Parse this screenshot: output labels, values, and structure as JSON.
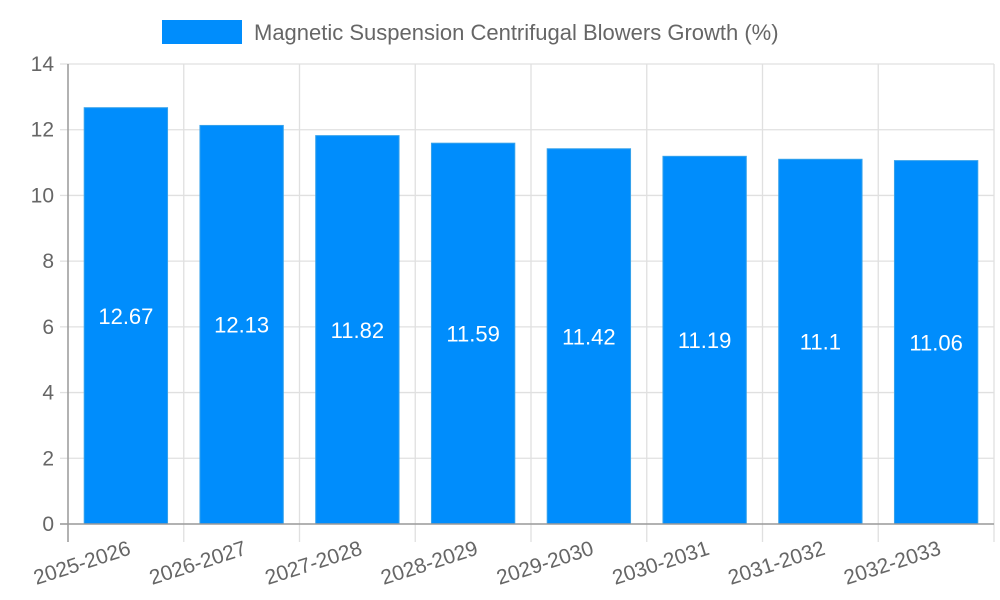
{
  "legend": {
    "label": "Magnetic Suspension Centrifugal Blowers Growth (%)",
    "color": "#008dfc"
  },
  "colors": {
    "bar": "#008dfc",
    "bar_border": "#36a2eb",
    "axis": "#999999",
    "grid": "#e0e0e0",
    "text": "#666666",
    "label": "#ffffff"
  },
  "chart_data": {
    "type": "bar",
    "title": "",
    "xlabel": "",
    "ylabel": "",
    "categories": [
      "2025-2026",
      "2026-2027",
      "2027-2028",
      "2028-2029",
      "2029-2030",
      "2030-2031",
      "2031-2032",
      "2032-2033"
    ],
    "series": [
      {
        "name": "Magnetic Suspension Centrifugal Blowers Growth (%)",
        "values": [
          12.67,
          12.13,
          11.82,
          11.59,
          11.42,
          11.19,
          11.1,
          11.06
        ]
      }
    ],
    "data_labels": [
      "12.67",
      "12.13",
      "11.82",
      "11.59",
      "11.42",
      "11.19",
      "11.1",
      "11.06"
    ],
    "ylim": [
      0,
      14
    ],
    "yticks": [
      0,
      2,
      4,
      6,
      8,
      10,
      12,
      14
    ],
    "grid": true,
    "legend_position": "top"
  }
}
